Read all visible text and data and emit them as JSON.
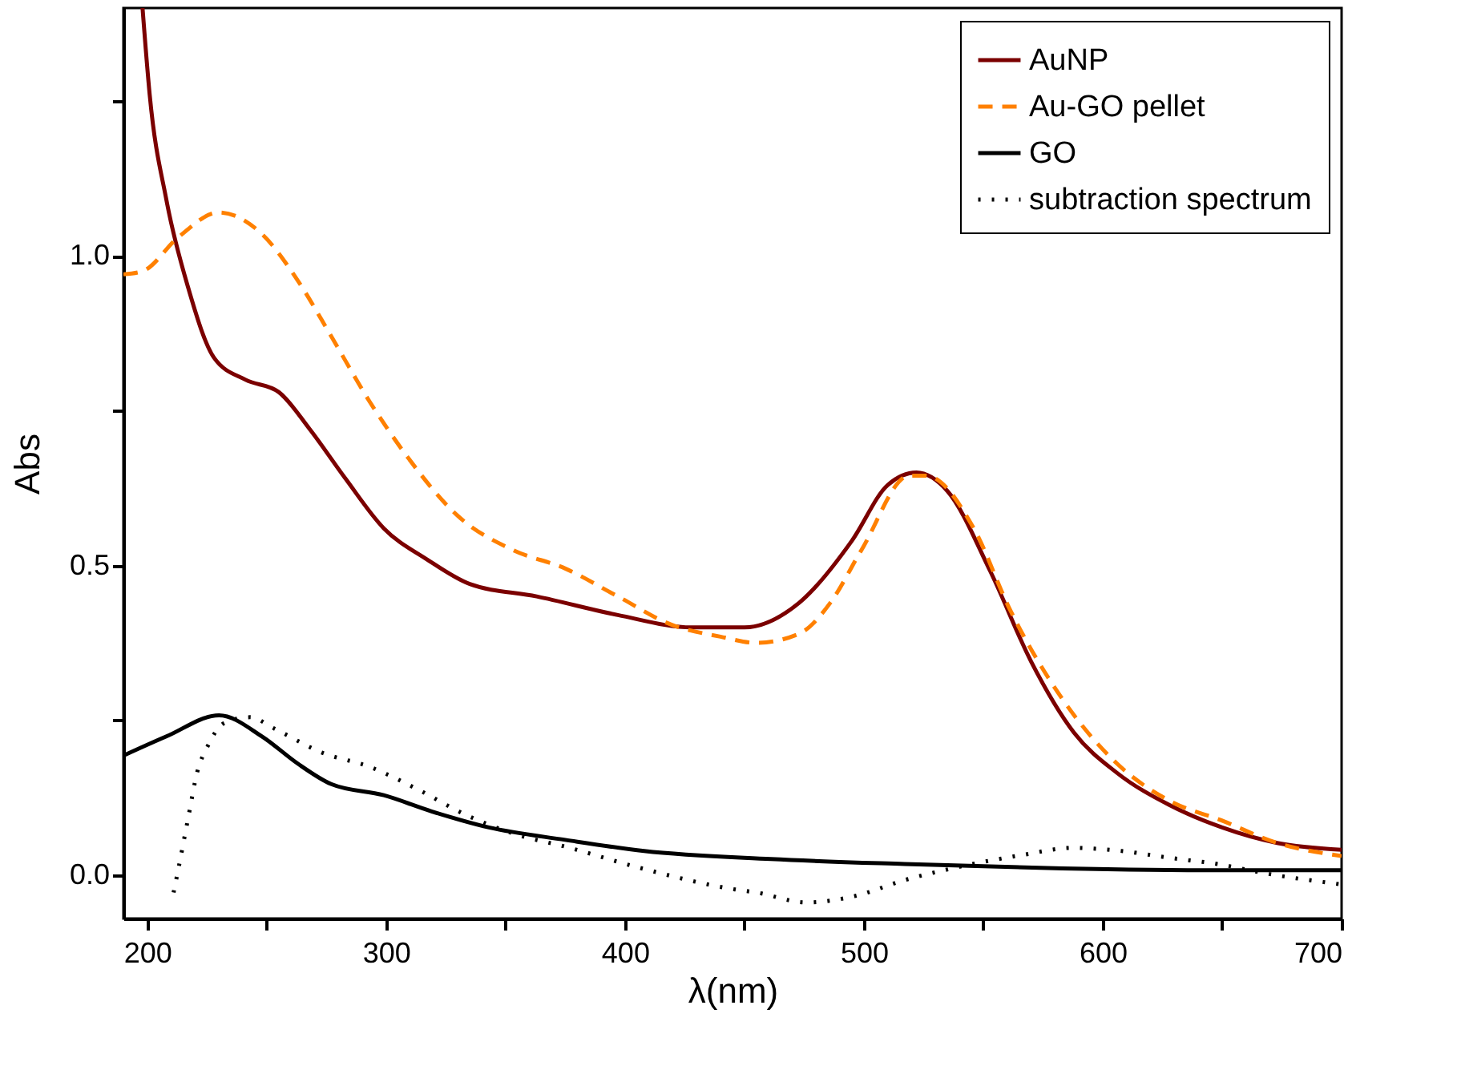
{
  "chart_data": {
    "type": "line",
    "xlabel": "λ(nm)",
    "ylabel": "Abs",
    "legend": "top right",
    "grid": false,
    "xlim": [
      190,
      700
    ],
    "ylim": [
      -0.07,
      1.4
    ],
    "xticks": [
      200,
      {
        "value": 250,
        "label": null
      },
      300,
      {
        "value": 350,
        "label": null
      },
      400,
      {
        "value": 450,
        "label": null
      },
      500,
      {
        "value": 550,
        "label": null
      },
      600,
      {
        "value": 650,
        "label": null
      },
      700
    ],
    "yticks": [
      {
        "value": 0,
        "label": "0.0"
      },
      {
        "value": 0.25,
        "label": null
      },
      {
        "value": 0.5,
        "label": "0.5"
      },
      {
        "value": 0.75,
        "label": null
      },
      {
        "value": 1,
        "label": "1.0"
      },
      {
        "value": 1.25,
        "label": null
      }
    ],
    "series": [
      {
        "name": "AuNP",
        "color": "#7b0000",
        "line_style": "solid",
        "x": [
          198,
          201,
          208,
          217,
          228,
          241,
          255,
          268,
          283,
          299,
          317,
          335,
          363,
          397,
          428,
          450,
          473,
          495,
          510,
          522,
          535,
          553,
          570,
          588,
          606,
          628,
          650,
          673,
          700
        ],
        "values": [
          1.4,
          1.26,
          1.09,
          0.95,
          0.835,
          0.8,
          0.78,
          0.72,
          0.64,
          0.56,
          0.51,
          0.47,
          0.45,
          0.42,
          0.4,
          0.4,
          0.44,
          0.54,
          0.63,
          0.65,
          0.62,
          0.49,
          0.345,
          0.23,
          0.165,
          0.113,
          0.077,
          0.052,
          0.041
        ]
      },
      {
        "name": "Au-GO pellet",
        "color": "#ff8000",
        "line_style": "dashed",
        "x": [
          190,
          198,
          213,
          230,
          248,
          263,
          277,
          293,
          308,
          330,
          353,
          375,
          397,
          419,
          440,
          455,
          473,
          486,
          499,
          519,
          526,
          546,
          561,
          583,
          606,
          628,
          650,
          673,
          700
        ],
        "values": [
          0.97,
          0.975,
          1.03,
          1.07,
          1.035,
          0.96,
          0.87,
          0.765,
          0.68,
          0.58,
          0.525,
          0.495,
          0.45,
          0.405,
          0.385,
          0.375,
          0.39,
          0.44,
          0.525,
          0.645,
          0.645,
          0.56,
          0.43,
          0.285,
          0.18,
          0.12,
          0.088,
          0.052,
          0.031
        ]
      },
      {
        "name": "GO",
        "color": "#000000",
        "line_style": "solid",
        "x": [
          190,
          208,
          230,
          248,
          263,
          277,
          299,
          319,
          343,
          375,
          408,
          461,
          517,
          583,
          650,
          700
        ],
        "values": [
          0.193,
          0.224,
          0.258,
          0.224,
          0.18,
          0.147,
          0.129,
          0.103,
          0.077,
          0.057,
          0.039,
          0.026,
          0.018,
          0.011,
          0.008,
          0.008
        ]
      },
      {
        "name": "subtraction spectrum",
        "color": "#000000",
        "line_style": "dotted",
        "x": [
          211,
          213,
          217,
          221,
          225,
          232,
          243,
          253,
          273,
          293,
          313,
          333,
          355,
          375,
          405,
          446,
          455,
          476,
          496,
          517,
          537,
          567,
          587,
          608,
          628,
          648,
          668,
          700
        ],
        "values": [
          -0.028,
          0.01,
          0.09,
          0.168,
          0.206,
          0.245,
          0.255,
          0.237,
          0.198,
          0.175,
          0.139,
          0.098,
          0.065,
          0.046,
          0.013,
          -0.023,
          -0.028,
          -0.044,
          -0.034,
          -0.008,
          0.011,
          0.033,
          0.044,
          0.039,
          0.028,
          0.018,
          0.003,
          -0.015
        ]
      }
    ]
  }
}
